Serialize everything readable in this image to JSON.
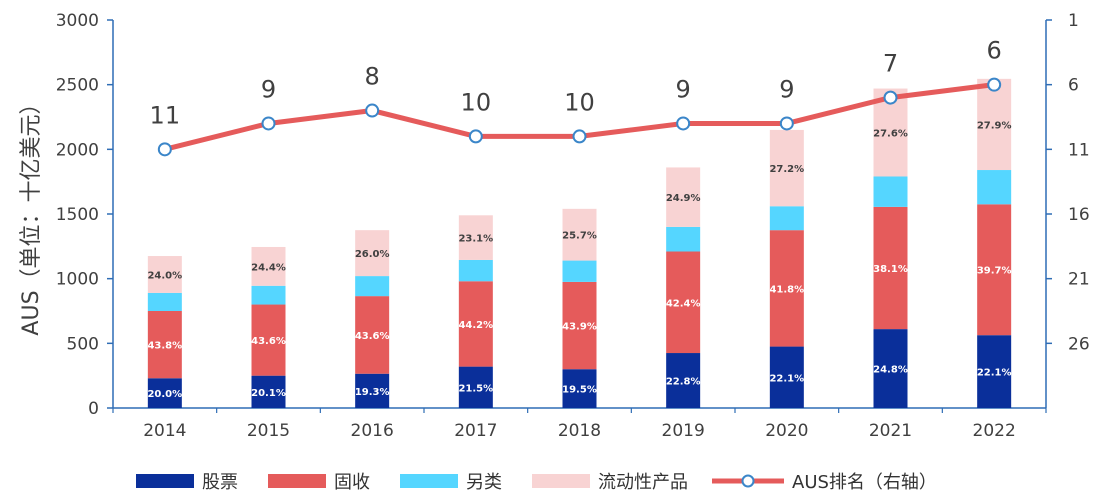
{
  "chart_data": {
    "type": "bar",
    "stacked": true,
    "title": "",
    "ylabel": "AUS（单位：十亿美元）",
    "ylim": [
      0,
      3000
    ],
    "yticks": [
      0,
      500,
      1000,
      1500,
      2000,
      2500,
      3000
    ],
    "y2lim": [
      1,
      31
    ],
    "y2ticks": [
      1,
      6,
      11,
      16,
      21,
      26
    ],
    "categories": [
      "2014",
      "2015",
      "2016",
      "2017",
      "2018",
      "2019",
      "2020",
      "2021",
      "2022"
    ],
    "series": [
      {
        "name": "股票",
        "values": [
          230,
          250,
          265,
          320,
          300,
          425,
          475,
          610,
          563
        ],
        "labels": [
          "20.0%",
          "20.1%",
          "19.3%",
          "21.5%",
          "19.5%",
          "22.8%",
          "22.1%",
          "24.8%",
          "22.1%"
        ],
        "color": "#0a2f9a",
        "label_color": "#ffffff"
      },
      {
        "name": "固收",
        "values": [
          520,
          550,
          600,
          660,
          675,
          785,
          900,
          945,
          1012
        ],
        "labels": [
          "43.8%",
          "43.6%",
          "43.6%",
          "44.2%",
          "43.9%",
          "42.4%",
          "41.8%",
          "38.1%",
          "39.7%"
        ],
        "color": "#e55b5b",
        "label_color": "#ffffff"
      },
      {
        "name": "另类",
        "values": [
          140,
          145,
          155,
          165,
          165,
          190,
          185,
          235,
          265
        ],
        "labels": [
          "",
          "",
          "",
          "",
          "",
          "",
          "",
          "",
          ""
        ],
        "color": "#55d6ff",
        "label_color": "#404040"
      },
      {
        "name": "流动性产品",
        "values": [
          285,
          300,
          355,
          345,
          400,
          460,
          590,
          680,
          705
        ],
        "labels": [
          "24.0%",
          "24.4%",
          "26.0%",
          "23.1%",
          "25.7%",
          "24.9%",
          "27.2%",
          "27.6%",
          "27.9%"
        ],
        "color": "#f8d3d3",
        "label_color": "#404040"
      }
    ],
    "line": {
      "name": "AUS排名（右轴）",
      "axis": "right",
      "values": [
        11,
        9,
        8,
        10,
        10,
        9,
        9,
        7,
        6
      ],
      "labels": [
        "11",
        "9",
        "8",
        "10",
        "10",
        "9",
        "9",
        "7",
        "6"
      ],
      "color": "#e55b5b"
    },
    "legend_position": "bottom",
    "grid": false
  }
}
